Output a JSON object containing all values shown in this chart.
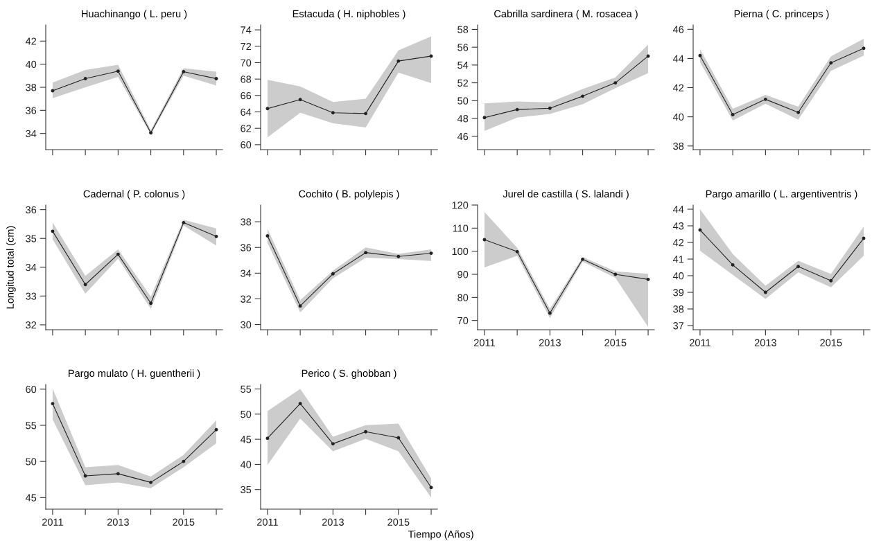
{
  "chart_data": [
    {
      "type": "line",
      "title": "Huachinango ( L. peru )",
      "x": [
        2011,
        2012,
        2013,
        2014,
        2015,
        2016
      ],
      "xlim": [
        2010.79,
        2016.19
      ],
      "xticks": [
        {
          "value": 2011,
          "label": null
        },
        {
          "value": 2012,
          "label": null
        },
        {
          "value": 2013,
          "label": null
        },
        {
          "value": 2014,
          "label": null
        },
        {
          "value": 2015,
          "label": null
        },
        {
          "value": 2016,
          "label": null
        }
      ],
      "ylim": [
        32.6,
        43.4
      ],
      "yticks": [
        34,
        36,
        38,
        40,
        42
      ],
      "tick_labels": "y",
      "marker": "circle",
      "grid": false,
      "series": [
        {
          "color": "#222222",
          "values": [
            37.7,
            38.75,
            39.4,
            34.05,
            39.35,
            38.75
          ],
          "lower": [
            37.05,
            38.0,
            38.9,
            33.9,
            39.0,
            38.15
          ],
          "upper": [
            38.4,
            39.5,
            39.95,
            34.3,
            39.65,
            39.35
          ]
        }
      ]
    },
    {
      "type": "line",
      "title": "Estacuda ( H. niphobles )",
      "x": [
        2011,
        2012,
        2013,
        2014,
        2015,
        2016
      ],
      "xlim": [
        2010.79,
        2016.19
      ],
      "xticks": [
        {
          "value": 2011,
          "label": null
        },
        {
          "value": 2012,
          "label": null
        },
        {
          "value": 2013,
          "label": null
        },
        {
          "value": 2014,
          "label": null
        },
        {
          "value": 2015,
          "label": null
        },
        {
          "value": 2016,
          "label": null
        }
      ],
      "ylim": [
        59.4,
        74.6
      ],
      "yticks": [
        60,
        62,
        64,
        66,
        68,
        70,
        72,
        74
      ],
      "tick_labels": "y",
      "marker": "circle",
      "grid": false,
      "series": [
        {
          "color": "#222222",
          "values": [
            64.4,
            65.5,
            63.9,
            63.8,
            70.2,
            70.8
          ],
          "lower": [
            60.9,
            63.9,
            62.6,
            62.1,
            68.8,
            67.5
          ],
          "upper": [
            67.9,
            67.1,
            65.2,
            65.6,
            71.5,
            73.2
          ]
        }
      ]
    },
    {
      "type": "line",
      "title": "Cabrilla sardinera ( M. rosacea )",
      "x": [
        2011,
        2012,
        2013,
        2014,
        2015,
        2016
      ],
      "xlim": [
        2010.79,
        2016.19
      ],
      "xticks": [
        {
          "value": 2011,
          "label": null
        },
        {
          "value": 2012,
          "label": null
        },
        {
          "value": 2013,
          "label": null
        },
        {
          "value": 2014,
          "label": null
        },
        {
          "value": 2015,
          "label": null
        },
        {
          "value": 2016,
          "label": null
        }
      ],
      "ylim": [
        44.5,
        58.5
      ],
      "yticks": [
        46,
        48,
        50,
        52,
        54,
        56,
        58
      ],
      "tick_labels": "y",
      "marker": "circle",
      "grid": false,
      "series": [
        {
          "color": "#222222",
          "values": [
            48.1,
            49.0,
            49.15,
            50.5,
            52.0,
            55.0
          ],
          "lower": [
            46.6,
            48.1,
            48.5,
            49.6,
            51.4,
            53.1
          ],
          "upper": [
            49.7,
            49.9,
            49.8,
            51.3,
            52.6,
            56.3
          ]
        }
      ]
    },
    {
      "type": "line",
      "title": "Pierna ( C. princeps )",
      "x": [
        2011,
        2012,
        2013,
        2014,
        2015,
        2016
      ],
      "xlim": [
        2010.79,
        2016.19
      ],
      "xticks": [
        {
          "value": 2011,
          "label": null
        },
        {
          "value": 2012,
          "label": null
        },
        {
          "value": 2013,
          "label": null
        },
        {
          "value": 2014,
          "label": null
        },
        {
          "value": 2015,
          "label": null
        },
        {
          "value": 2016,
          "label": null
        }
      ],
      "ylim": [
        37.75,
        46.3
      ],
      "yticks": [
        38,
        40,
        42,
        44,
        46
      ],
      "tick_labels": "y",
      "marker": "circle",
      "grid": false,
      "series": [
        {
          "color": "#222222",
          "values": [
            44.2,
            40.15,
            41.2,
            40.3,
            43.7,
            44.7
          ],
          "lower": [
            43.75,
            39.75,
            40.9,
            39.8,
            43.15,
            44.2
          ],
          "upper": [
            44.65,
            40.55,
            41.5,
            40.7,
            44.15,
            45.35
          ]
        }
      ]
    },
    {
      "type": "line",
      "title": "Cadernal ( P. colonus )",
      "ylabel": "Longitud total (cm)",
      "x": [
        2011,
        2012,
        2013,
        2014,
        2015,
        2016
      ],
      "xlim": [
        2010.79,
        2016.19
      ],
      "xticks": [
        {
          "value": 2011,
          "label": null
        },
        {
          "value": 2012,
          "label": null
        },
        {
          "value": 2013,
          "label": null
        },
        {
          "value": 2014,
          "label": null
        },
        {
          "value": 2015,
          "label": null
        },
        {
          "value": 2016,
          "label": null
        }
      ],
      "ylim": [
        31.83,
        36.16
      ],
      "yticks": [
        32,
        33,
        34,
        35,
        36
      ],
      "tick_labels": "y",
      "marker": "circle",
      "grid": false,
      "series": [
        {
          "color": "#222222",
          "values": [
            35.25,
            33.4,
            34.45,
            32.75,
            35.55,
            35.07
          ],
          "lower": [
            34.97,
            33.08,
            34.3,
            32.55,
            35.45,
            34.75
          ],
          "upper": [
            35.55,
            33.7,
            34.62,
            32.98,
            35.65,
            35.35
          ]
        }
      ]
    },
    {
      "type": "line",
      "title": "Cochito ( B. polylepis )",
      "x": [
        2011,
        2012,
        2013,
        2014,
        2015,
        2016
      ],
      "xlim": [
        2010.79,
        2016.19
      ],
      "xticks": [
        {
          "value": 2011,
          "label": null
        },
        {
          "value": 2012,
          "label": null
        },
        {
          "value": 2013,
          "label": null
        },
        {
          "value": 2014,
          "label": null
        },
        {
          "value": 2015,
          "label": null
        },
        {
          "value": 2016,
          "label": null
        }
      ],
      "ylim": [
        29.6,
        39.3
      ],
      "yticks": [
        30,
        32,
        34,
        36,
        38
      ],
      "tick_labels": "y",
      "marker": "circle",
      "grid": false,
      "series": [
        {
          "color": "#222222",
          "values": [
            36.9,
            31.45,
            33.95,
            35.6,
            35.3,
            35.55
          ],
          "lower": [
            36.35,
            30.95,
            33.6,
            35.2,
            35.1,
            34.95
          ],
          "upper": [
            37.45,
            31.9,
            34.2,
            36.0,
            35.5,
            35.85
          ]
        }
      ]
    },
    {
      "type": "line",
      "title": "Jurel de castilla ( S. lalandi )",
      "x": [
        2011,
        2012,
        2013,
        2014,
        2015,
        2016
      ],
      "xlim": [
        2010.79,
        2016.19
      ],
      "xticks": [
        2011,
        {
          "value": 2012,
          "label": null
        },
        2013,
        {
          "value": 2014,
          "label": null
        },
        2015,
        {
          "value": 2016,
          "label": null
        }
      ],
      "ylim": [
        66,
        120
      ],
      "yticks": [
        70,
        80,
        90,
        100,
        110,
        120
      ],
      "marker": "circle",
      "grid": false,
      "series": [
        {
          "color": "#222222",
          "values": [
            105,
            99.8,
            73.2,
            96.5,
            90,
            87.8
          ],
          "lower": [
            93,
            98,
            71,
            95.5,
            88.5,
            67.2
          ],
          "upper": [
            117,
            101.5,
            75,
            97.5,
            91.3,
            90.2
          ]
        }
      ]
    },
    {
      "type": "line",
      "title": "Pargo amarillo ( L. argentiventris )",
      "x": [
        2011,
        2012,
        2013,
        2014,
        2015,
        2016
      ],
      "xlim": [
        2010.79,
        2016.19
      ],
      "xticks": [
        2011,
        {
          "value": 2012,
          "label": null
        },
        2013,
        {
          "value": 2014,
          "label": null
        },
        2015,
        {
          "value": 2016,
          "label": null
        }
      ],
      "ylim": [
        36.75,
        44.25
      ],
      "yticks": [
        37,
        38,
        39,
        40,
        41,
        42,
        43,
        44
      ],
      "marker": "circle",
      "grid": false,
      "series": [
        {
          "color": "#222222",
          "values": [
            42.75,
            40.65,
            39.0,
            40.55,
            39.7,
            42.25
          ],
          "lower": [
            41.5,
            40.05,
            38.6,
            40.2,
            39.3,
            41.2
          ],
          "upper": [
            44.0,
            41.3,
            39.4,
            40.9,
            40.1,
            42.95
          ]
        }
      ]
    },
    {
      "type": "line",
      "title": "Pargo mulato ( H. guentherii )",
      "x": [
        2011,
        2012,
        2013,
        2014,
        2015,
        2016
      ],
      "xlim": [
        2010.79,
        2016.19
      ],
      "xticks": [
        2011,
        {
          "value": 2012,
          "label": null
        },
        2013,
        {
          "value": 2014,
          "label": null
        },
        2015,
        {
          "value": 2016,
          "label": null
        }
      ],
      "ylim": [
        43.4,
        60.65
      ],
      "yticks": [
        45,
        50,
        55,
        60
      ],
      "marker": "circle",
      "grid": false,
      "series": [
        {
          "color": "#222222",
          "values": [
            58,
            48,
            48.3,
            47.1,
            50.0,
            54.4
          ],
          "lower": [
            55.8,
            46.7,
            47.1,
            46.3,
            49.2,
            52.5
          ],
          "upper": [
            60.1,
            49.2,
            49.5,
            47.9,
            50.9,
            55.7
          ]
        }
      ]
    },
    {
      "type": "line",
      "title": "Perico ( S. ghobban )",
      "xlabel": "Tiempo (Años)",
      "x": [
        2011,
        2012,
        2013,
        2014,
        2015,
        2016
      ],
      "xlim": [
        2010.79,
        2016.19
      ],
      "xticks": [
        2011,
        {
          "value": 2012,
          "label": null
        },
        2013,
        {
          "value": 2014,
          "label": null
        },
        2015,
        {
          "value": 2016,
          "label": null
        }
      ],
      "ylim": [
        31.1,
        55.9
      ],
      "yticks": [
        35,
        40,
        45,
        50,
        55
      ],
      "marker": "circle",
      "grid": false,
      "series": [
        {
          "color": "#222222",
          "values": [
            45.2,
            52.1,
            44.1,
            46.5,
            45.3,
            35.4
          ],
          "lower": [
            39.9,
            49.1,
            42.6,
            45.1,
            42.6,
            33.4
          ],
          "upper": [
            50.6,
            55.0,
            45.5,
            47.8,
            48.1,
            37.2
          ]
        }
      ]
    }
  ]
}
